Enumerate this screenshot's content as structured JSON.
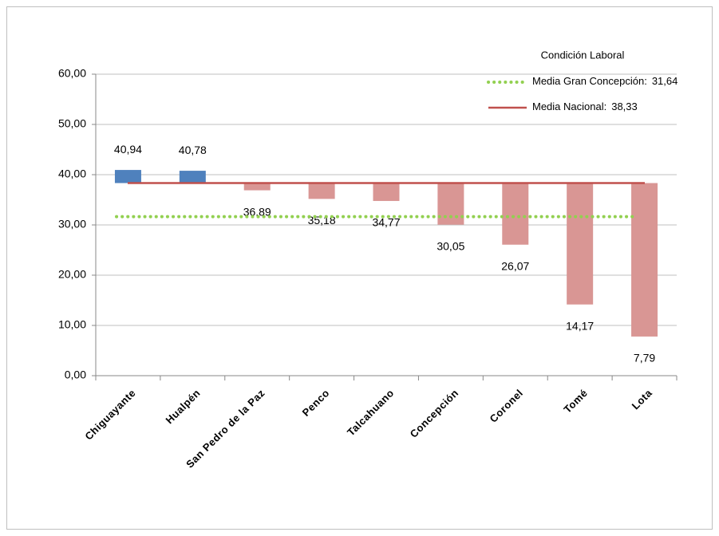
{
  "chart_data": {
    "type": "floating_bar",
    "categories": [
      "Chiguayante",
      "Hualpén",
      "San Pedro de la Paz",
      "Penco",
      "Talcahuano",
      "Concepción",
      "Coronel",
      "Tomé",
      "Lota"
    ],
    "values": [
      40.94,
      40.78,
      36.89,
      35.18,
      34.77,
      30.05,
      26.07,
      14.17,
      7.79
    ],
    "value_labels": [
      "40,94",
      "40,78",
      "36,89",
      "35,18",
      "34,77",
      "30,05",
      "26,07",
      "14,17",
      "7,79"
    ],
    "color_above": "#4f81bd",
    "color_below": "#d99694",
    "ylim": [
      0,
      60
    ],
    "yticks": [
      {
        "value": 0,
        "label": "0,00"
      },
      {
        "value": 10,
        "label": "10,00"
      },
      {
        "value": 20,
        "label": "20,00"
      },
      {
        "value": 30,
        "label": "30,00"
      },
      {
        "value": 40,
        "label": "40,00"
      },
      {
        "value": 50,
        "label": "50,00"
      },
      {
        "value": 60,
        "label": "60,00"
      }
    ],
    "grid": true,
    "legend_title": "Condición Laboral",
    "reference_lines": [
      {
        "name": "Media Gran Concepción:",
        "value": 31.64,
        "value_label": "31,64",
        "color": "#92d050",
        "style": "dotted"
      },
      {
        "name": "Media Nacional:",
        "value": 38.33,
        "value_label": "38,33",
        "color": "#c0504d",
        "style": "solid",
        "baseline": true
      }
    ]
  }
}
